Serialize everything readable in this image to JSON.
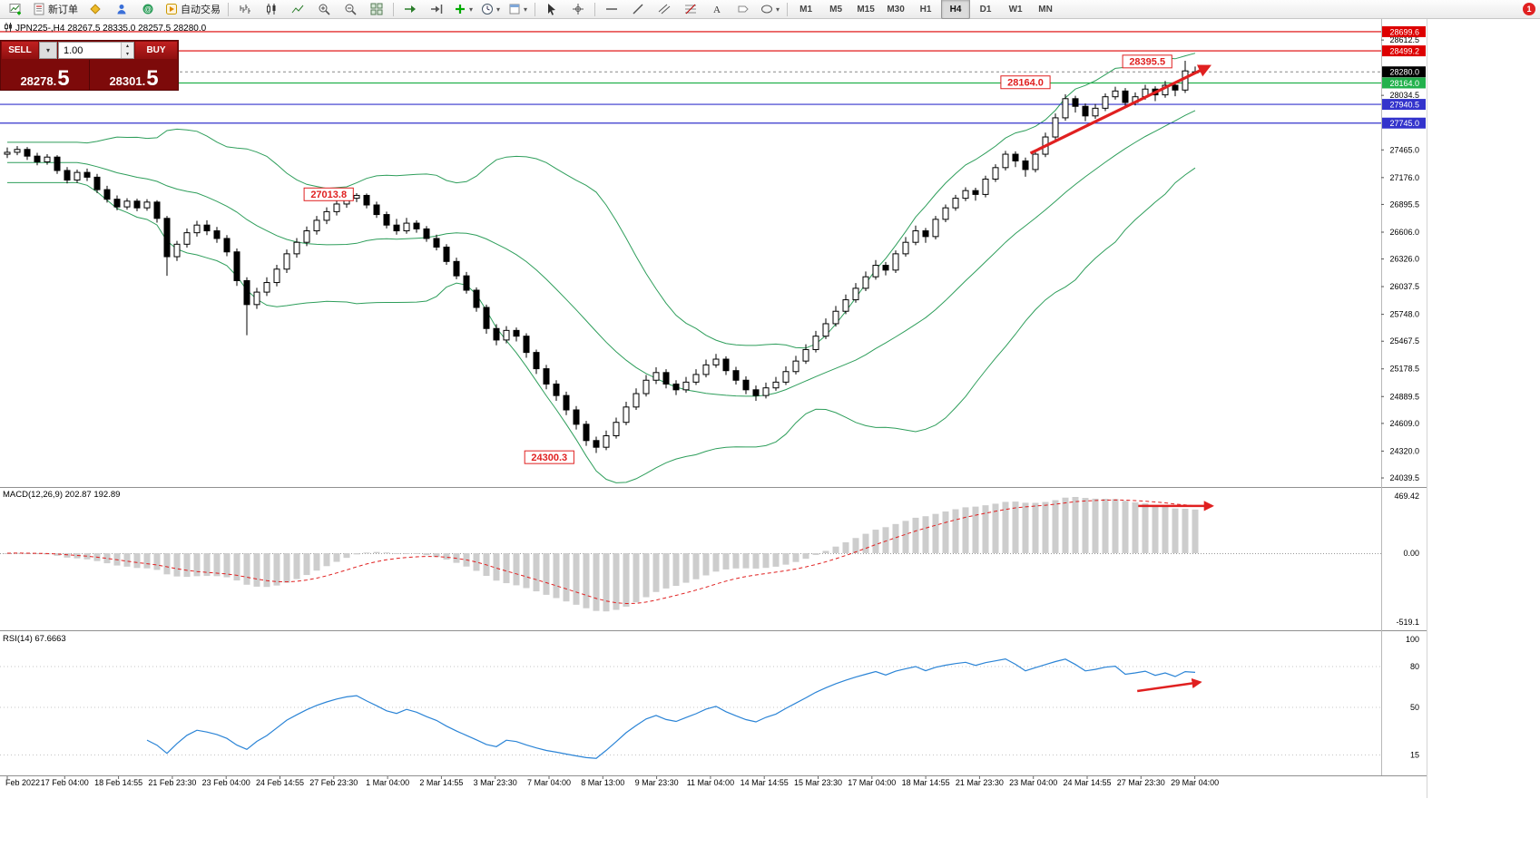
{
  "toolbar": {
    "notification_badge": "1",
    "active_timeframe": "H4",
    "items": [
      {
        "name": "new-chart-button",
        "icon": "new-chart"
      },
      {
        "name": "new-order-button",
        "icon": "new-order",
        "label": "新订单"
      },
      {
        "name": "metaeditor-button",
        "icon": "metaeditor"
      },
      {
        "name": "profile-button",
        "icon": "profile"
      },
      {
        "name": "community-button",
        "icon": "community"
      },
      {
        "name": "autotrading-button",
        "icon": "autotrading",
        "label": "自动交易"
      },
      {
        "type": "sep"
      },
      {
        "name": "bar-chart-button",
        "icon": "bar-chart"
      },
      {
        "name": "candle-chart-button",
        "icon": "candle-chart"
      },
      {
        "name": "line-chart-button",
        "icon": "line-chart"
      },
      {
        "name": "zoom-in-button",
        "icon": "zoom-in"
      },
      {
        "name": "zoom-out-button",
        "icon": "zoom-out"
      },
      {
        "name": "tile-windows-button",
        "icon": "tile-windows"
      },
      {
        "type": "sep"
      },
      {
        "name": "auto-scroll-button",
        "icon": "auto-scroll"
      },
      {
        "name": "chart-shift-button",
        "icon": "chart-shift"
      },
      {
        "name": "indicators-button",
        "icon": "add-indicator",
        "dropdown": true
      },
      {
        "name": "periods-button",
        "icon": "clock",
        "dropdown": true
      },
      {
        "name": "templates-button",
        "icon": "template",
        "dropdown": true
      },
      {
        "type": "sep"
      },
      {
        "name": "cursor-button",
        "icon": "cursor"
      },
      {
        "name": "crosshair-button",
        "icon": "crosshair"
      },
      {
        "type": "sep"
      },
      {
        "name": "horizontal-line-button",
        "icon": "horizontal-line"
      },
      {
        "name": "trendline-button",
        "icon": "trendline"
      },
      {
        "name": "channel-button",
        "icon": "channel"
      },
      {
        "name": "fibonacci-button",
        "icon": "fibonacci"
      },
      {
        "name": "text-button",
        "icon": "text"
      },
      {
        "name": "label-button",
        "icon": "label"
      },
      {
        "name": "shapes-button",
        "icon": "shapes",
        "dropdown": true
      },
      {
        "type": "sep"
      },
      {
        "type": "tf",
        "label": "M1"
      },
      {
        "type": "tf",
        "label": "M5"
      },
      {
        "type": "tf",
        "label": "M15"
      },
      {
        "type": "tf",
        "label": "M30"
      },
      {
        "type": "tf",
        "label": "H1"
      },
      {
        "type": "tf",
        "label": "H4"
      },
      {
        "type": "tf",
        "label": "D1"
      },
      {
        "type": "tf",
        "label": "W1"
      },
      {
        "type": "tf",
        "label": "MN"
      }
    ]
  },
  "symbol_line": "JPN225-,H4  28267.5 28335.0 28257.5 28280.0",
  "trade_panel": {
    "sell_label": "SELL",
    "buy_label": "BUY",
    "lot_value": "1.00",
    "sell_price_main": "28278.",
    "sell_price_pip": "5",
    "buy_price_main": "28301.",
    "buy_price_pip": "5"
  },
  "indicators": {
    "macd_label": "MACD(12,26,9) 202.87 192.89",
    "rsi_label": "RSI(14) 67.6663"
  },
  "chart_data": {
    "type": "candlestick",
    "symbol": "JPN225-",
    "timeframe": "H4",
    "last_ohlc": {
      "open": 28267.5,
      "high": 28335.0,
      "low": 28257.5,
      "close": 28280.0
    },
    "bollinger": {
      "period": 20,
      "deviation": 2,
      "color": "#2e9e5b"
    },
    "price_axis": {
      "range": [
        23945,
        28822
      ],
      "ticks": [
        28612.5,
        28034.5,
        27465.0,
        27176.0,
        26895.5,
        26606.0,
        26326.0,
        26037.5,
        25748.0,
        25467.5,
        25178.5,
        24889.5,
        24609.0,
        24320.0,
        24039.5
      ]
    },
    "levels": [
      {
        "price": 28699.6,
        "color": "#dd0000"
      },
      {
        "price": 28499.2,
        "color": "#dd0000"
      },
      {
        "price": 28164.0,
        "color": "#22b14c"
      },
      {
        "price": 27940.5,
        "color": "#3333cc"
      },
      {
        "price": 27745.0,
        "color": "#3333cc"
      }
    ],
    "current_price": {
      "value": 28280.0,
      "color": "#000000"
    },
    "callouts": [
      {
        "text": "28395.5",
        "i": 114.2,
        "price": 28388
      },
      {
        "text": "28164.0",
        "i": 102.0,
        "price": 28171
      },
      {
        "text": "27013.8",
        "i": 32.2,
        "price": 27001
      },
      {
        "text": "24300.3",
        "i": 54.3,
        "price": 24256
      }
    ],
    "trend_arrow": {
      "from": {
        "i": 102.5,
        "price": 27430
      },
      "to": {
        "i": 120.4,
        "price": 28340
      },
      "color": "#e02020"
    },
    "macd": {
      "params": "12,26,9",
      "main": 202.87,
      "signal": 192.89,
      "axis": [
        "469.42",
        "0.00",
        "-519.1"
      ],
      "arrow": {
        "from_i": 113.3,
        "to_i": 120.7,
        "color": "#e02020"
      }
    },
    "rsi": {
      "period": 14,
      "value": 67.6663,
      "axis": [
        "100",
        "80",
        "50",
        "15"
      ],
      "arrow": {
        "from": {
          "i": 113.2,
          "value": 62
        },
        "to": {
          "i": 119.5,
          "value": 68.5
        },
        "color": "#e02020"
      }
    },
    "time_axis": [
      "Feb 2022",
      "17 Feb 04:00",
      "18 Feb 14:55",
      "21 Feb 23:30",
      "23 Feb 04:00",
      "24 Feb 14:55",
      "27 Feb 23:30",
      "1 Mar 04:00",
      "2 Mar 14:55",
      "3 Mar 23:30",
      "7 Mar 04:00",
      "8 Mar 13:00",
      "9 Mar 23:30",
      "11 Mar 04:00",
      "14 Mar 14:55",
      "15 Mar 23:30",
      "17 Mar 04:00",
      "18 Mar 14:55",
      "21 Mar 23:30",
      "23 Mar 04:00",
      "24 Mar 14:55",
      "27 Mar 23:30",
      "29 Mar 04:00"
    ],
    "candles": [
      [
        27420,
        27490,
        27380,
        27440
      ],
      [
        27440,
        27505,
        27410,
        27470
      ],
      [
        27470,
        27495,
        27360,
        27400
      ],
      [
        27400,
        27435,
        27305,
        27340
      ],
      [
        27340,
        27420,
        27310,
        27390
      ],
      [
        27390,
        27410,
        27215,
        27250
      ],
      [
        27250,
        27285,
        27115,
        27150
      ],
      [
        27150,
        27260,
        27120,
        27230
      ],
      [
        27230,
        27270,
        27140,
        27180
      ],
      [
        27180,
        27215,
        27015,
        27050
      ],
      [
        27050,
        27090,
        26915,
        26950
      ],
      [
        26950,
        26990,
        26835,
        26870
      ],
      [
        26870,
        26960,
        26840,
        26930
      ],
      [
        26930,
        26955,
        26825,
        26860
      ],
      [
        26860,
        26950,
        26830,
        26920
      ],
      [
        26920,
        26940,
        26705,
        26750
      ],
      [
        26750,
        26775,
        26150,
        26350
      ],
      [
        26350,
        26515,
        26305,
        26480
      ],
      [
        26480,
        26645,
        26445,
        26600
      ],
      [
        26600,
        26725,
        26560,
        26680
      ],
      [
        26680,
        26730,
        26575,
        26620
      ],
      [
        26620,
        26660,
        26495,
        26540
      ],
      [
        26540,
        26575,
        26355,
        26400
      ],
      [
        26400,
        26435,
        26045,
        26100
      ],
      [
        26100,
        26135,
        25530,
        25850
      ],
      [
        25850,
        26025,
        25805,
        25980
      ],
      [
        25980,
        26135,
        25940,
        26080
      ],
      [
        26080,
        26265,
        26040,
        26220
      ],
      [
        26220,
        26425,
        26180,
        26380
      ],
      [
        26380,
        26545,
        26340,
        26500
      ],
      [
        26500,
        26665,
        26460,
        26620
      ],
      [
        26620,
        26775,
        26580,
        26730
      ],
      [
        26730,
        26865,
        26690,
        26820
      ],
      [
        26820,
        26945,
        26780,
        26900
      ],
      [
        26900,
        27005,
        26860,
        26960
      ],
      [
        26960,
        27013.8,
        26920,
        26990
      ],
      [
        26990,
        27010,
        26855,
        26890
      ],
      [
        26890,
        26925,
        26755,
        26790
      ],
      [
        26790,
        26820,
        26645,
        26680
      ],
      [
        26680,
        26745,
        26580,
        26620
      ],
      [
        26620,
        26755,
        26590,
        26700
      ],
      [
        26700,
        26730,
        26600,
        26640
      ],
      [
        26640,
        26670,
        26505,
        26540
      ],
      [
        26540,
        26580,
        26415,
        26450
      ],
      [
        26450,
        26480,
        26265,
        26300
      ],
      [
        26300,
        26340,
        26115,
        26150
      ],
      [
        26150,
        26190,
        25965,
        26000
      ],
      [
        26000,
        26030,
        25775,
        25820
      ],
      [
        25820,
        25850,
        25545,
        25600
      ],
      [
        25600,
        25645,
        25425,
        25480
      ],
      [
        25480,
        25625,
        25445,
        25580
      ],
      [
        25580,
        25610,
        25465,
        25520
      ],
      [
        25520,
        25550,
        25295,
        25350
      ],
      [
        25350,
        25380,
        25125,
        25180
      ],
      [
        25180,
        25220,
        24965,
        25020
      ],
      [
        25020,
        25060,
        24845,
        24900
      ],
      [
        24900,
        24940,
        24695,
        24750
      ],
      [
        24750,
        24790,
        24545,
        24600
      ],
      [
        24600,
        24635,
        24375,
        24430
      ],
      [
        24430,
        24470,
        24300.3,
        24360
      ],
      [
        24360,
        24535,
        24330,
        24480
      ],
      [
        24480,
        24670,
        24450,
        24620
      ],
      [
        24620,
        24835,
        24590,
        24780
      ],
      [
        24780,
        24975,
        24750,
        24920
      ],
      [
        24920,
        25115,
        24890,
        25060
      ],
      [
        25060,
        25195,
        25020,
        25140
      ],
      [
        25140,
        25175,
        24975,
        25020
      ],
      [
        25020,
        25060,
        24905,
        24960
      ],
      [
        24960,
        25095,
        24930,
        25040
      ],
      [
        25040,
        25175,
        25010,
        25120
      ],
      [
        25120,
        25275,
        25090,
        25220
      ],
      [
        25220,
        25335,
        25190,
        25280
      ],
      [
        25280,
        25310,
        25115,
        25160
      ],
      [
        25160,
        25200,
        25015,
        25060
      ],
      [
        25060,
        25100,
        24915,
        24960
      ],
      [
        24960,
        25005,
        24845,
        24900
      ],
      [
        24900,
        25035,
        24870,
        24980
      ],
      [
        24980,
        25095,
        24950,
        25040
      ],
      [
        25040,
        25205,
        25010,
        25150
      ],
      [
        25150,
        25315,
        25120,
        25260
      ],
      [
        25260,
        25435,
        25230,
        25380
      ],
      [
        25380,
        25575,
        25350,
        25520
      ],
      [
        25520,
        25705,
        25490,
        25650
      ],
      [
        25650,
        25835,
        25620,
        25780
      ],
      [
        25780,
        25955,
        25750,
        25900
      ],
      [
        25900,
        26075,
        25870,
        26020
      ],
      [
        26020,
        26195,
        25990,
        26140
      ],
      [
        26140,
        26315,
        26110,
        26260
      ],
      [
        26260,
        26295,
        26155,
        26210
      ],
      [
        26210,
        26415,
        26180,
        26380
      ],
      [
        26380,
        26555,
        26350,
        26500
      ],
      [
        26500,
        26675,
        26470,
        26620
      ],
      [
        26620,
        26650,
        26495,
        26560
      ],
      [
        26560,
        26775,
        26530,
        26740
      ],
      [
        26740,
        26895,
        26710,
        26860
      ],
      [
        26860,
        26995,
        26830,
        26960
      ],
      [
        26960,
        27075,
        26930,
        27040
      ],
      [
        27040,
        27070,
        26935,
        27000
      ],
      [
        27000,
        27195,
        26970,
        27160
      ],
      [
        27160,
        27315,
        27130,
        27280
      ],
      [
        27280,
        27455,
        27250,
        27420
      ],
      [
        27420,
        27450,
        27285,
        27350
      ],
      [
        27350,
        27385,
        27185,
        27260
      ],
      [
        27260,
        27455,
        27230,
        27420
      ],
      [
        27420,
        27645,
        27390,
        27600
      ],
      [
        27600,
        27845,
        27570,
        27800
      ],
      [
        27800,
        28045,
        27770,
        28000
      ],
      [
        28000,
        28030,
        27855,
        27920
      ],
      [
        27920,
        27950,
        27765,
        27820
      ],
      [
        27820,
        27945,
        27790,
        27900
      ],
      [
        27900,
        28055,
        27870,
        28020
      ],
      [
        28020,
        28125,
        27990,
        28080
      ],
      [
        28080,
        28110,
        27905,
        27960
      ],
      [
        27960,
        28065,
        27930,
        28020
      ],
      [
        28020,
        28145,
        27990,
        28100
      ],
      [
        28100,
        28130,
        27975,
        28040
      ],
      [
        28040,
        28185,
        28010,
        28140
      ],
      [
        28140,
        28170,
        28025,
        28090
      ],
      [
        28090,
        28395.5,
        28060,
        28290
      ],
      [
        28267.5,
        28335.0,
        28257.5,
        28280.0
      ]
    ]
  }
}
